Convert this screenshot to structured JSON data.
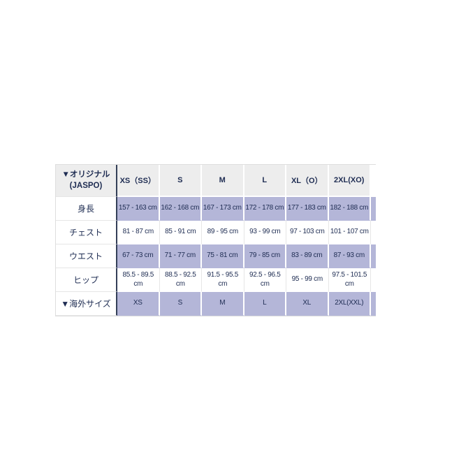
{
  "page": {
    "background_color": "#ffffff"
  },
  "table": {
    "colors": {
      "header_bg": "#ededed",
      "band_bg": "#b4b6d8",
      "text": "#1e2c52",
      "light_border": "#dedede",
      "dark_divider": "#343f58"
    },
    "header": {
      "corner_line1": "▼オリジナル",
      "corner_line2": "(JASPO)",
      "columns": [
        "XS（SS）",
        "S",
        "M",
        "L",
        "XL（O）",
        "2XL(XO)"
      ]
    },
    "rows": [
      {
        "label": "身長",
        "shaded": true,
        "values": [
          "157 - 163 cm",
          "162 - 168 cm",
          "167 - 173 cm",
          "172 - 178 cm",
          "177 - 183 cm",
          "182 - 188 cm"
        ]
      },
      {
        "label": "チェスト",
        "shaded": false,
        "values": [
          "81 - 87 cm",
          "85 - 91 cm",
          "89 - 95 cm",
          "93 - 99 cm",
          "97 - 103 cm",
          "101 - 107 cm"
        ]
      },
      {
        "label": "ウエスト",
        "shaded": true,
        "values": [
          "67 - 73 cm",
          "71 - 77 cm",
          "75 - 81 cm",
          "79 - 85 cm",
          "83 - 89 cm",
          "87 - 93 cm"
        ]
      },
      {
        "label": "ヒップ",
        "shaded": false,
        "values": [
          "85.5 - 89.5 cm",
          "88.5 - 92.5 cm",
          "91.5 - 95.5 cm",
          "92.5 - 96.5 cm",
          "95 - 99 cm",
          "97.5 - 101.5 cm"
        ]
      },
      {
        "label": "▼海外サイズ",
        "shaded": true,
        "values": [
          "XS",
          "S",
          "M",
          "L",
          "XL",
          "2XL(XXL)"
        ]
      }
    ]
  }
}
